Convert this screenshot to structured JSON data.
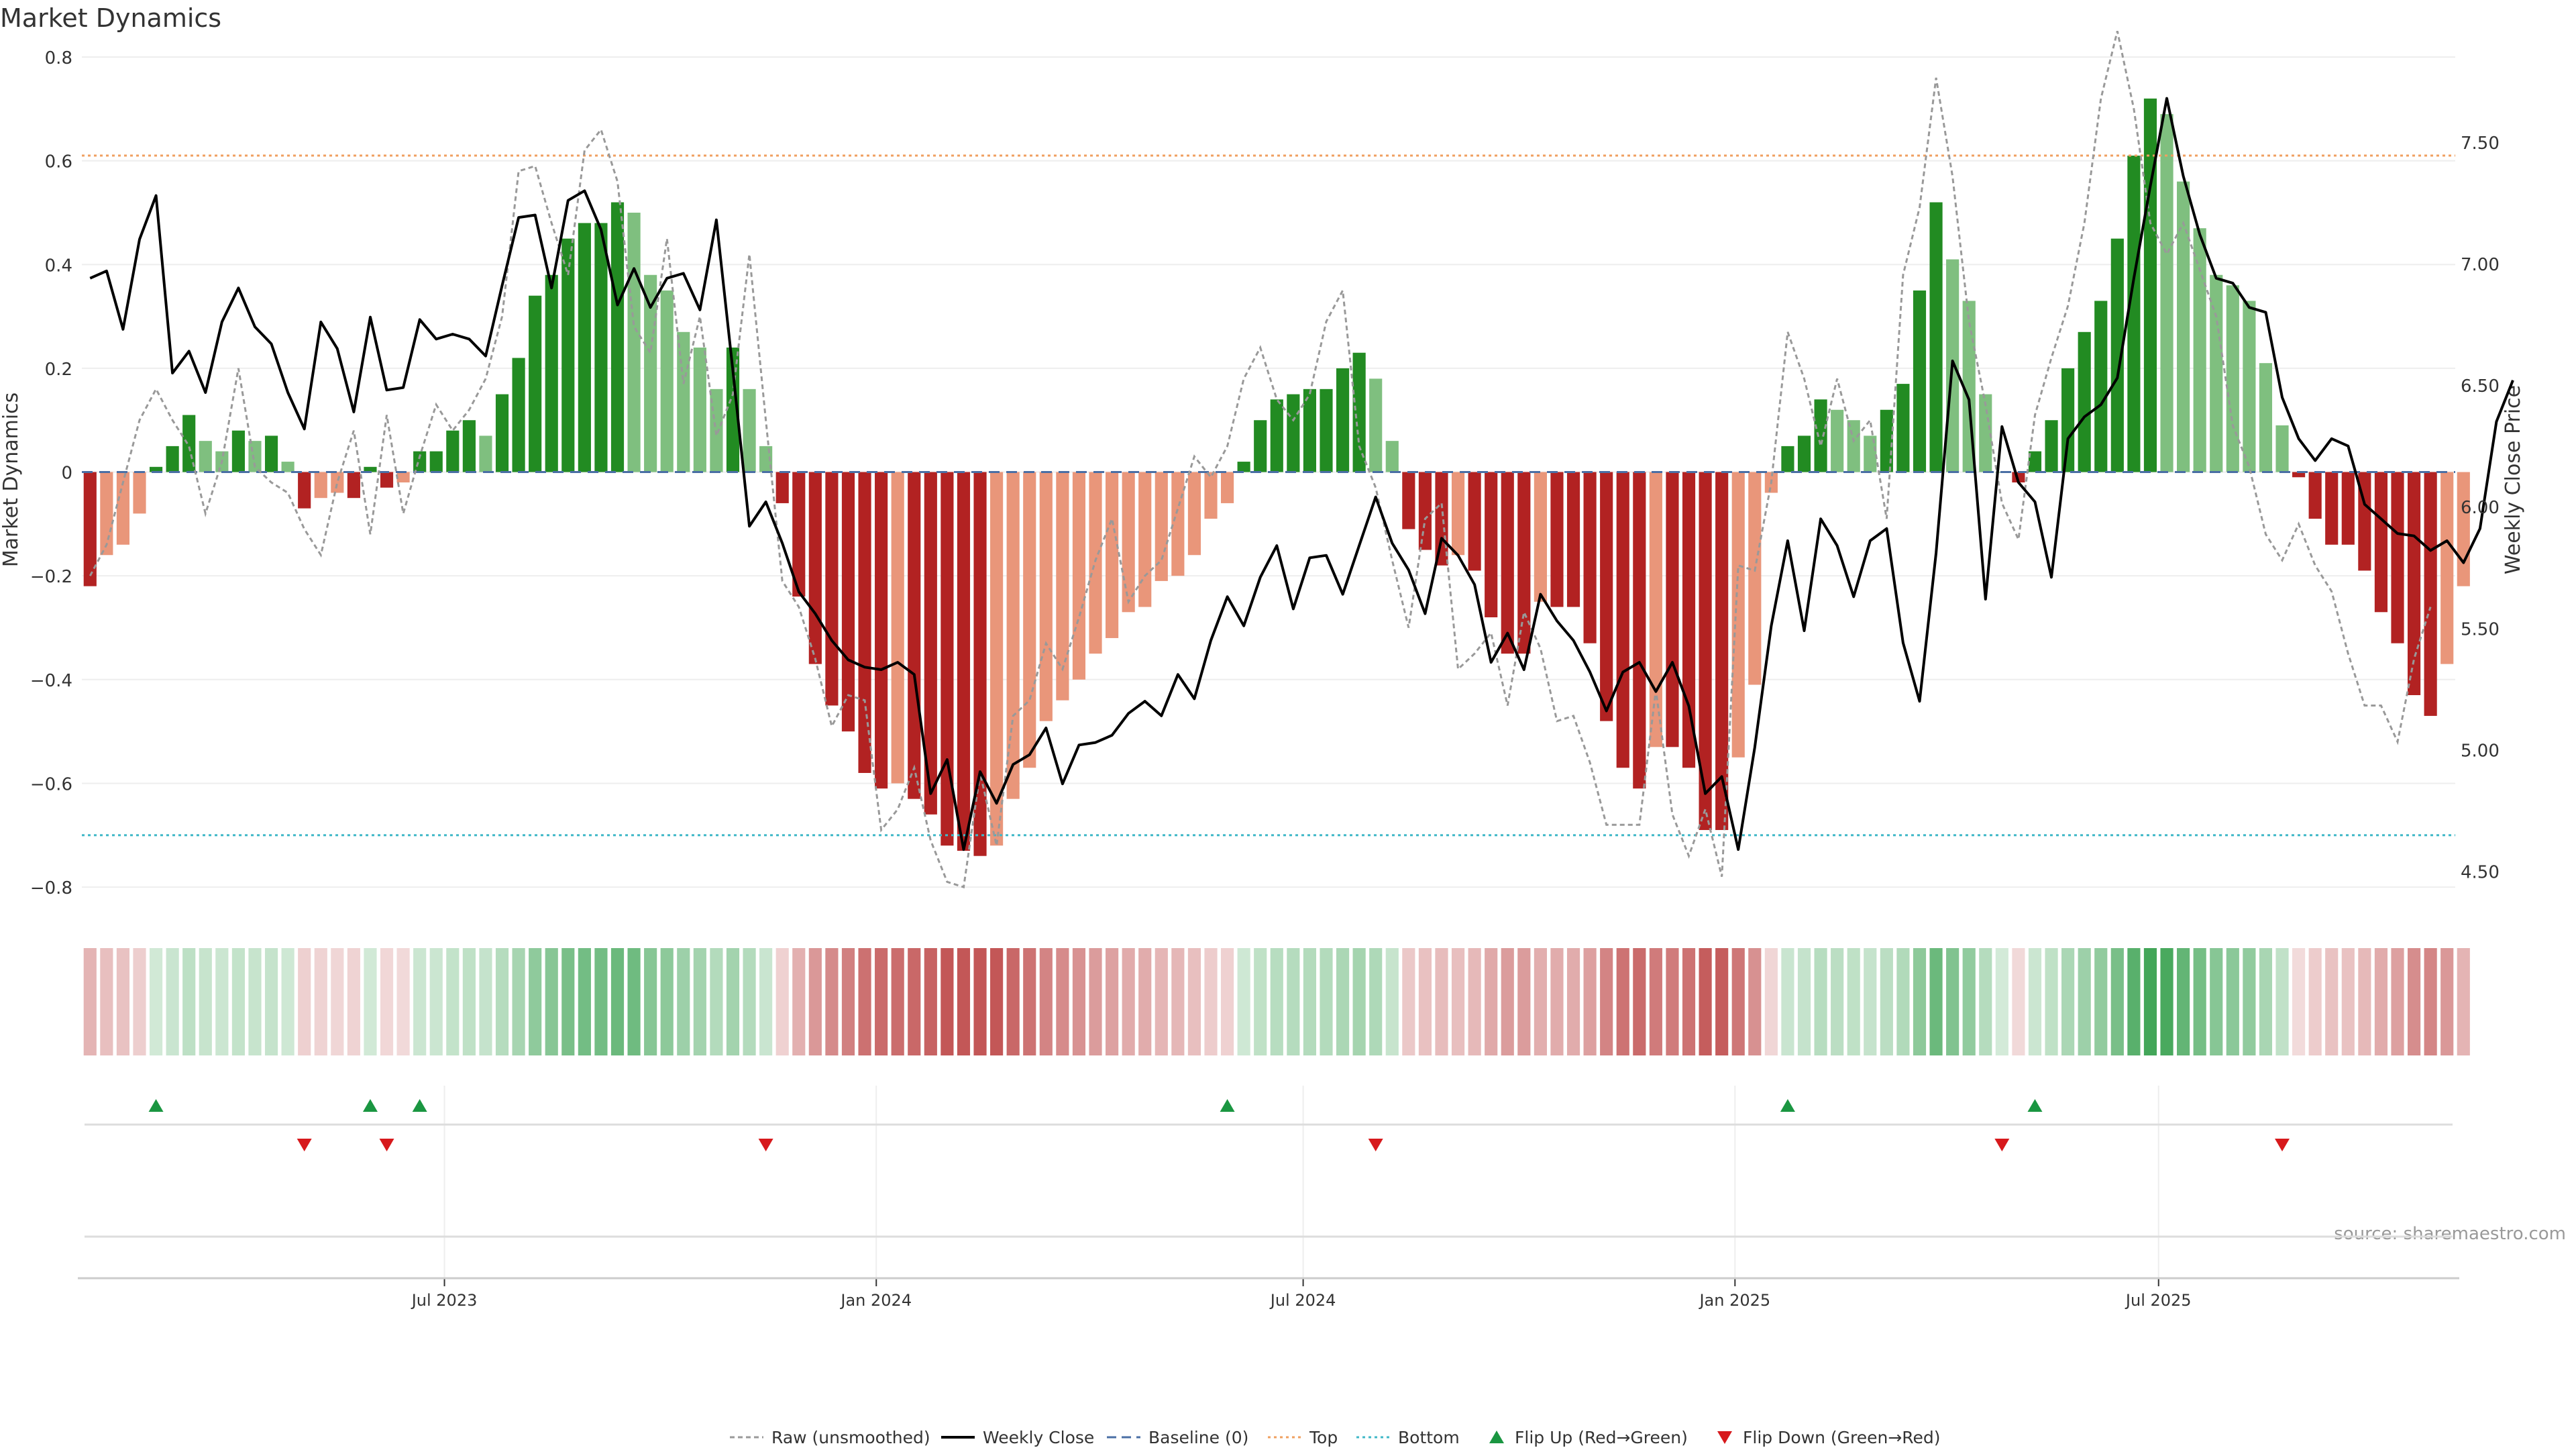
{
  "chart_data": {
    "type": "bar",
    "title": "Market Dynamics",
    "ylabel": "Market Dynamics",
    "y2label": "Weekly Close Price",
    "source": "source: sharemaestro.com",
    "ylim": [
      -0.84,
      0.8
    ],
    "y2lim": [
      4.35,
      7.85
    ],
    "yticks": [
      "0.8",
      "0.6",
      "0.4",
      "0.2",
      "0",
      "−0.2",
      "−0.4",
      "−0.6",
      "−0.8"
    ],
    "y2ticks": [
      "7.50",
      "7.00",
      "6.50",
      "6.00",
      "5.50",
      "5.00",
      "4.50"
    ],
    "xticks": [
      "Jul 2023",
      "Jan 2024",
      "Jul 2024",
      "Jan 2025",
      "Jul 2025"
    ],
    "xtick_weeks": [
      21.5,
      47.7,
      73.6,
      99.8,
      125.5
    ],
    "weeks": 144,
    "top_level": 0.61,
    "bottom_level": -0.7,
    "grid": true,
    "colors": {
      "strong_green": "#228b22",
      "light_green": "#7fbf7f",
      "strong_red": "#b22222",
      "light_red": "#e9967a",
      "close": "#000000",
      "raw": "#999999",
      "baseline": "#4a6fa5",
      "top": "#f0a060",
      "bottom": "#40b8c8",
      "flip_up": "#1a9641",
      "flip_down": "#d7191c"
    },
    "series": [
      {
        "name": "Market Dynamics",
        "values": [
          -0.22,
          -0.16,
          -0.14,
          -0.08,
          0.01,
          0.05,
          0.11,
          0.06,
          0.04,
          0.08,
          0.06,
          0.07,
          0.02,
          -0.07,
          -0.05,
          -0.04,
          -0.05,
          0.01,
          -0.03,
          -0.02,
          0.04,
          0.04,
          0.08,
          0.1,
          0.07,
          0.15,
          0.22,
          0.34,
          0.38,
          0.45,
          0.48,
          0.48,
          0.52,
          0.5,
          0.38,
          0.35,
          0.27,
          0.24,
          0.16,
          0.24,
          0.16,
          0.05,
          -0.06,
          -0.24,
          -0.37,
          -0.45,
          -0.5,
          -0.58,
          -0.61,
          -0.6,
          -0.63,
          -0.66,
          -0.72,
          -0.73,
          -0.74,
          -0.72,
          -0.63,
          -0.57,
          -0.48,
          -0.44,
          -0.4,
          -0.35,
          -0.32,
          -0.27,
          -0.26,
          -0.21,
          -0.2,
          -0.16,
          -0.09,
          -0.06,
          0.02,
          0.1,
          0.14,
          0.15,
          0.16,
          0.16,
          0.2,
          0.23,
          0.18,
          0.06,
          -0.11,
          -0.15,
          -0.18,
          -0.16,
          -0.19,
          -0.28,
          -0.35,
          -0.35,
          -0.25,
          -0.26,
          -0.26,
          -0.33,
          -0.48,
          -0.57,
          -0.61,
          -0.53,
          -0.53,
          -0.57,
          -0.69,
          -0.69,
          -0.55,
          -0.41,
          -0.04,
          0.05,
          0.07,
          0.14,
          0.12,
          0.1,
          0.07,
          0.12,
          0.17,
          0.35,
          0.52,
          0.41,
          0.33,
          0.15,
          0,
          -0.02,
          0.04,
          0.1,
          0.2,
          0.27,
          0.33,
          0.45,
          0.61,
          0.72,
          0.69,
          0.56,
          0.47,
          0.38,
          0.36,
          0.33,
          0.21,
          0.09,
          -0.01,
          -0.09,
          -0.14,
          -0.14,
          -0.19,
          -0.27,
          -0.33,
          -0.43,
          -0.47,
          -0.37,
          -0.22
        ]
      },
      {
        "name": "Raw (unsmoothed)",
        "values": [
          -0.2,
          -0.14,
          -0.02,
          0.1,
          0.16,
          0.1,
          0.05,
          -0.08,
          0.02,
          0.2,
          0.01,
          -0.02,
          -0.04,
          -0.11,
          -0.16,
          -0.02,
          0.08,
          -0.12,
          0.11,
          -0.08,
          0.03,
          0.13,
          0.08,
          0.12,
          0.18,
          0.3,
          0.58,
          0.59,
          0.48,
          0.38,
          0.62,
          0.66,
          0.56,
          0.28,
          0.23,
          0.45,
          0.17,
          0.3,
          0.07,
          0.15,
          0.42,
          0.1,
          -0.21,
          -0.26,
          -0.36,
          -0.49,
          -0.43,
          -0.44,
          -0.69,
          -0.65,
          -0.57,
          -0.71,
          -0.79,
          -0.8,
          -0.58,
          -0.72,
          -0.47,
          -0.44,
          -0.33,
          -0.38,
          -0.28,
          -0.17,
          -0.09,
          -0.25,
          -0.2,
          -0.17,
          -0.07,
          0.03,
          -0.01,
          0.05,
          0.18,
          0.24,
          0.14,
          0.1,
          0.15,
          0.29,
          0.35,
          0.05,
          -0.03,
          -0.17,
          -0.3,
          -0.09,
          -0.06,
          -0.38,
          -0.35,
          -0.31,
          -0.45,
          -0.27,
          -0.34,
          -0.48,
          -0.47,
          -0.56,
          -0.68,
          -0.68,
          -0.68,
          -0.42,
          -0.66,
          -0.74,
          -0.65,
          -0.78,
          -0.18,
          -0.19,
          -0.02,
          0.27,
          0.18,
          0.05,
          0.18,
          0.06,
          0.1,
          -0.09,
          0.38,
          0.51,
          0.76,
          0.57,
          0.29,
          0.13,
          -0.06,
          -0.13,
          0.11,
          0.22,
          0.32,
          0.48,
          0.72,
          0.85,
          0.7,
          0.48,
          0.42,
          0.48,
          0.39,
          0.3,
          0.09,
          0.01,
          -0.12,
          -0.17,
          -0.1,
          -0.18,
          -0.23,
          -0.35,
          -0.45,
          -0.45,
          -0.52,
          -0.36,
          -0.26
        ]
      },
      {
        "name": "Weekly Close",
        "axis": "right",
        "values": [
          6.94,
          6.97,
          6.73,
          7.1,
          7.28,
          6.55,
          6.64,
          6.47,
          6.76,
          6.9,
          6.74,
          6.67,
          6.47,
          6.32,
          6.76,
          6.65,
          6.39,
          6.78,
          6.48,
          6.49,
          6.77,
          6.69,
          6.71,
          6.69,
          6.62,
          6.91,
          7.19,
          7.2,
          6.9,
          7.26,
          7.3,
          7.14,
          6.83,
          6.98,
          6.82,
          6.94,
          6.96,
          6.81,
          7.18,
          6.56,
          5.92,
          6.02,
          5.85,
          5.65,
          5.56,
          5.45,
          5.37,
          5.34,
          5.33,
          5.36,
          5.31,
          4.82,
          4.96,
          4.59,
          4.91,
          4.78,
          4.94,
          4.98,
          5.09,
          4.86,
          5.02,
          5.03,
          5.06,
          5.15,
          5.2,
          5.14,
          5.31,
          5.21,
          5.45,
          5.63,
          5.51,
          5.71,
          5.84,
          5.58,
          5.79,
          5.8,
          5.64,
          5.84,
          6.04,
          5.85,
          5.74,
          5.56,
          5.87,
          5.8,
          5.68,
          5.36,
          5.48,
          5.33,
          5.64,
          5.53,
          5.45,
          5.32,
          5.16,
          5.32,
          5.36,
          5.24,
          5.36,
          5.18,
          4.82,
          4.89,
          4.59,
          5.01,
          5.51,
          5.86,
          5.49,
          5.95,
          5.84,
          5.63,
          5.86,
          5.91,
          5.44,
          5.2,
          5.81,
          6.6,
          6.44,
          5.62,
          6.33,
          6.1,
          6.02,
          5.71,
          6.28,
          6.37,
          6.42,
          6.53,
          6.94,
          7.32,
          7.68,
          7.36,
          7.12,
          6.94,
          6.92,
          6.82,
          6.8,
          6.45,
          6.28,
          6.19,
          6.28,
          6.25,
          6.01,
          5.95,
          5.89,
          5.88,
          5.82,
          5.86,
          5.77,
          5.91,
          6.35,
          6.52
        ]
      }
    ],
    "heatmap_strip": "week-by-week color strip mirroring Market Dynamics sign and magnitude",
    "flips": {
      "up_weeks": [
        4,
        17,
        20,
        69,
        103,
        118
      ],
      "down_weeks": [
        13,
        18,
        41,
        78,
        116,
        133
      ]
    },
    "legend": {
      "position": "bottom-center",
      "entries": [
        "Raw (unsmoothed)",
        "Weekly Close",
        "Baseline (0)",
        "Top",
        "Bottom",
        "Flip Up (Red→Green)",
        "Flip Down (Green→Red)"
      ]
    }
  }
}
